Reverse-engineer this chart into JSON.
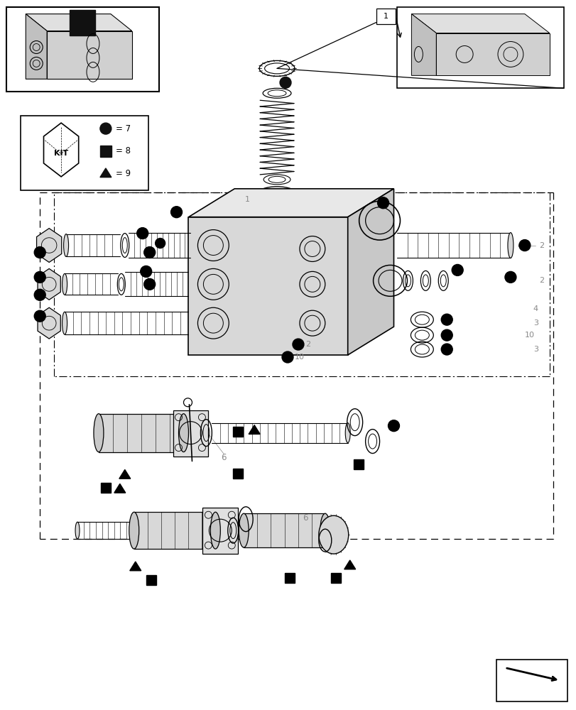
{
  "bg_color": "#ffffff",
  "line_color": "#000000",
  "gray": "#888888",
  "figure_width": 8.12,
  "figure_height": 10.0,
  "dpi": 100
}
